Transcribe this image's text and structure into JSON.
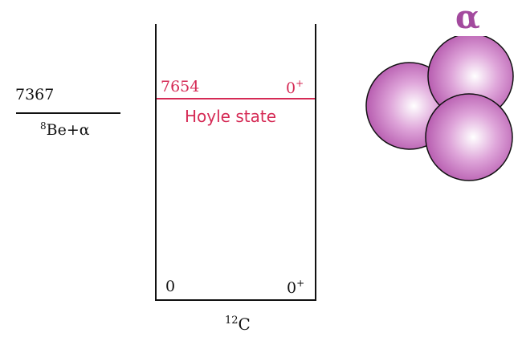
{
  "threshold": {
    "energy": "7367",
    "channel_mass": "8",
    "channel_text": "Be+α"
  },
  "hoyle_state": {
    "energy": "7654",
    "spin": "0",
    "parity": "+",
    "name": "Hoyle state"
  },
  "ground_state": {
    "energy": "0",
    "spin": "0",
    "parity": "+"
  },
  "nucleus": {
    "mass": "12",
    "symbol": "C"
  },
  "alpha": {
    "symbol": "α"
  },
  "colors": {
    "hoyle": "#d52a55",
    "alpha": "#a34a9e",
    "sphere_fill": "#cf7bc8"
  }
}
